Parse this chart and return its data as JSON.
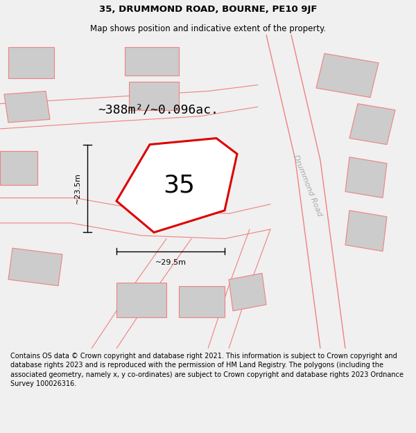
{
  "title": "35, DRUMMOND ROAD, BOURNE, PE10 9JF",
  "subtitle": "Map shows position and indicative extent of the property.",
  "footer": "Contains OS data © Crown copyright and database right 2021. This information is subject to Crown copyright and database rights 2023 and is reproduced with the permission of HM Land Registry. The polygons (including the associated geometry, namely x, y co-ordinates) are subject to Crown copyright and database rights 2023 Ordnance Survey 100026316.",
  "area_label": "~388m²/~0.096ac.",
  "number_label": "35",
  "width_label": "~29.5m",
  "height_label": "~23.5m",
  "road_label": "Drummond Road",
  "bg_color": "#f0f0f0",
  "map_bg": "#ffffff",
  "plot_color": "#dd0000",
  "building_color": "#cccccc",
  "building_edge": "#f08080",
  "road_line_color": "#f08080",
  "title_fontsize": 9.5,
  "subtitle_fontsize": 8.5,
  "footer_fontsize": 7.0,
  "area_fontsize": 13,
  "number_fontsize": 26,
  "dim_fontsize": 8,
  "road_fontsize": 8
}
